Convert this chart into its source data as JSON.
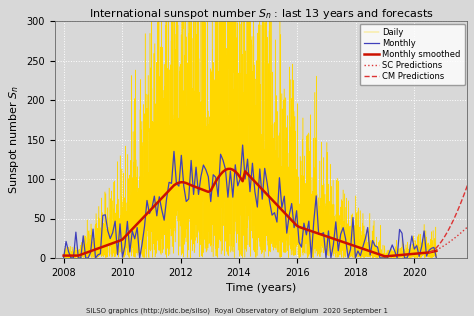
{
  "title": "International sunspot number $S_n$ : last 13 years and forecasts",
  "xlabel": "Time (years)",
  "ylabel": "Sunspot number $S_n$",
  "footer": "SILSO graphics (http://sidc.be/silso)  Royal Observatory of Belgium  2020 September 1",
  "xlim": [
    2007.7,
    2021.8
  ],
  "ylim": [
    0,
    300
  ],
  "yticks": [
    0,
    50,
    100,
    150,
    200,
    250,
    300
  ],
  "xticks": [
    2008,
    2010,
    2012,
    2014,
    2016,
    2018,
    2020
  ],
  "daily_color": "#FFD700",
  "monthly_color": "#4040BB",
  "smoothed_color": "#CC1100",
  "sc_pred_color": "#DD3333",
  "cm_pred_color": "#DD3333",
  "background_color": "#D8D8D8",
  "grid_color": "#FFFFFF",
  "legend_entries": [
    "Daily",
    "Monthly",
    "Monthly smoothed",
    "SC Predictions",
    "CM Predictions"
  ]
}
